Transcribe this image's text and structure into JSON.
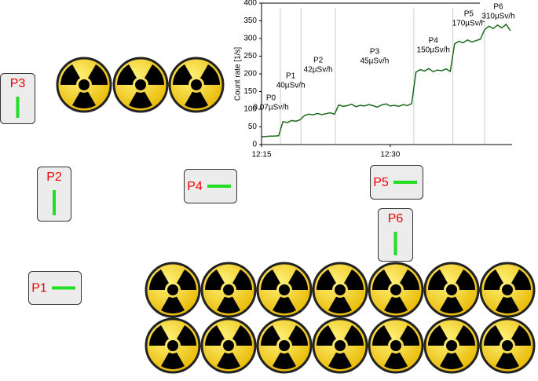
{
  "chart_data": {
    "type": "line",
    "y_label": "Count rate [1/s]",
    "x": [
      735,
      735.5,
      736,
      736.5,
      737,
      737.5,
      738,
      738.5,
      739,
      739.5,
      740,
      740.5,
      741,
      741.5,
      742,
      742.5,
      743,
      743.5,
      744,
      744.5,
      745,
      745.5,
      746,
      746.5,
      747,
      747.5,
      748,
      748.5,
      749,
      749.5,
      750,
      750.5,
      751,
      751.5,
      752,
      752.5,
      753,
      753.5,
      754,
      754.5,
      755,
      755.5,
      756,
      756.5,
      757,
      757.5,
      758,
      758.5,
      759,
      759.5,
      760,
      760.5,
      761,
      761.5,
      762,
      762.5,
      763,
      763.5,
      764
    ],
    "values": [
      22,
      23,
      24,
      24,
      25,
      65,
      62,
      68,
      66,
      70,
      82,
      86,
      84,
      88,
      85,
      87,
      90,
      86,
      112,
      108,
      110,
      114,
      107,
      111,
      109,
      113,
      110,
      106,
      112,
      115,
      109,
      111,
      108,
      113,
      110,
      116,
      205,
      212,
      208,
      215,
      206,
      211,
      209,
      214,
      207,
      285,
      292,
      288,
      296,
      290,
      294,
      298,
      325,
      335,
      328,
      338,
      330,
      340,
      322
    ],
    "color": "#1e6b1e",
    "xlim": [
      735,
      764.2
    ],
    "ylim": [
      0,
      400
    ],
    "xticks": [
      {
        "value": 735,
        "label": "12:15"
      },
      {
        "value": 750,
        "label": "12:30"
      }
    ],
    "yticks": [
      0,
      50,
      100,
      150,
      200,
      250,
      300,
      350,
      400
    ],
    "annotations": [
      {
        "start": 735,
        "end": 737.2,
        "label": "P0",
        "dose": "0.07µSv/h"
      },
      {
        "start": 737.2,
        "end": 739.6,
        "label": "P1",
        "dose": "40µSv/h"
      },
      {
        "start": 739.6,
        "end": 743.6,
        "label": "P2",
        "dose": "42µSv/h"
      },
      {
        "start": 743.6,
        "end": 752.75,
        "label": "P3",
        "dose": "45µSv/h"
      },
      {
        "start": 752.75,
        "end": 757.3,
        "label": "P4",
        "dose": "150µSv/h"
      },
      {
        "start": 757.3,
        "end": 761,
        "label": "P5",
        "dose": "170µSv/h"
      },
      {
        "start": 761,
        "end": 764.2,
        "label": "P6",
        "dose": "310µSv/h"
      }
    ]
  },
  "positions": [
    {
      "label": "P1"
    },
    {
      "label": "P2"
    },
    {
      "label": "P3"
    },
    {
      "label": "P4"
    },
    {
      "label": "P5"
    },
    {
      "label": "P6"
    }
  ]
}
